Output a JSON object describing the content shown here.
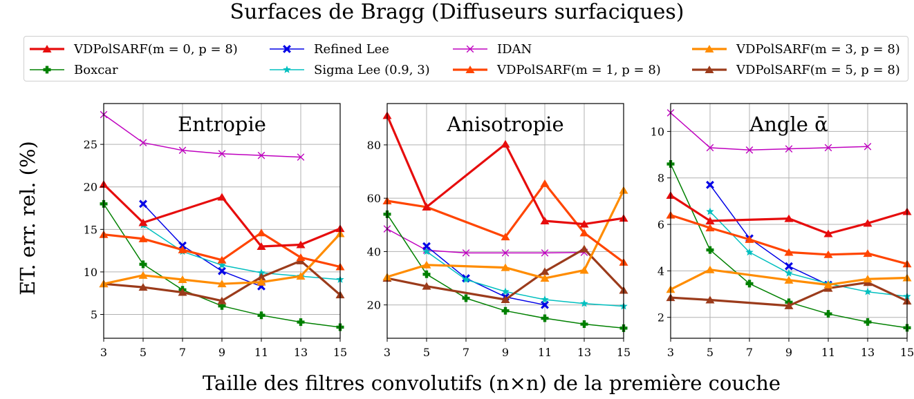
{
  "figure": {
    "title": "Surfaces de Bragg (Diffuseurs surfaciques)",
    "xlabel": "Taille des filtres convolutifs (n×n) de la première couche",
    "ylabel": "ET. err. rel. (%)"
  },
  "legend": [
    {
      "label": "VDPolSARF(m = 0, p = 8)",
      "color": "#e60d0d",
      "marker": "triangle"
    },
    {
      "label": "Boxcar",
      "color": "#008000",
      "marker": "plus"
    },
    {
      "label": "Refined Lee",
      "color": "#0000e6",
      "marker": "x-filled"
    },
    {
      "label": "Sigma Lee (0.9, 3)",
      "color": "#00bfbf",
      "marker": "star"
    },
    {
      "label": "IDAN",
      "color": "#bf00bf",
      "marker": "x"
    },
    {
      "label": "VDPolSARF(m = 1, p = 8)",
      "color": "#ff4500",
      "marker": "triangle"
    },
    {
      "label": "VDPolSARF(m = 3, p = 8)",
      "color": "#ff8c00",
      "marker": "triangle"
    },
    {
      "label": "VDPolSARF(m = 5, p = 8)",
      "color": "#9b3b1b",
      "marker": "triangle"
    }
  ],
  "chart_data": [
    {
      "type": "line",
      "title": "Entropie",
      "x": [
        3,
        5,
        7,
        9,
        11,
        13,
        15
      ],
      "xticks": [
        3,
        5,
        7,
        9,
        11,
        13,
        15
      ],
      "xlim": [
        3,
        15
      ],
      "ylim": [
        2.2,
        29.8
      ],
      "yticks": [
        5,
        10,
        15,
        20,
        25
      ],
      "grid": true,
      "series": [
        {
          "name": "IDAN",
          "values": [
            28.5,
            25.2,
            24.3,
            23.9,
            23.7,
            23.5,
            null
          ]
        },
        {
          "name": "Boxcar",
          "values": [
            18.0,
            10.9,
            7.9,
            6.0,
            4.9,
            4.1,
            3.5
          ]
        },
        {
          "name": "Refined Lee",
          "values": [
            null,
            18.0,
            13.1,
            10.1,
            8.3,
            null,
            null
          ]
        },
        {
          "name": "Sigma Lee (0.9, 3)",
          "values": [
            null,
            15.5,
            12.4,
            10.8,
            9.9,
            9.5,
            9.1
          ]
        },
        {
          "name": "VDPolSARF(m = 5, p = 8)",
          "values": [
            8.6,
            8.2,
            7.6,
            6.6,
            9.4,
            11.3,
            7.3
          ]
        },
        {
          "name": "VDPolSARF(m = 3, p = 8)",
          "values": [
            8.6,
            9.6,
            9.1,
            8.6,
            8.8,
            9.5,
            14.5
          ]
        },
        {
          "name": "VDPolSARF(m = 1, p = 8)",
          "values": [
            14.4,
            13.9,
            12.6,
            11.4,
            14.6,
            11.7,
            10.6
          ]
        },
        {
          "name": "VDPolSARF(m = 0, p = 8)",
          "values": [
            20.3,
            15.8,
            null,
            18.8,
            13.0,
            13.2,
            15.1
          ]
        }
      ]
    },
    {
      "type": "line",
      "title": "Anisotropie",
      "x": [
        3,
        5,
        7,
        9,
        11,
        13,
        15
      ],
      "xticks": [
        3,
        5,
        7,
        9,
        11,
        13,
        15
      ],
      "xlim": [
        3,
        15
      ],
      "ylim": [
        7.5,
        95.5
      ],
      "yticks": [
        20,
        40,
        60,
        80
      ],
      "grid": true,
      "series": [
        {
          "name": "IDAN",
          "values": [
            48.5,
            40.5,
            39.5,
            39.5,
            39.5,
            39.7,
            null
          ]
        },
        {
          "name": "Boxcar",
          "values": [
            54.0,
            31.5,
            22.5,
            17.8,
            15.0,
            12.8,
            11.3
          ]
        },
        {
          "name": "Refined Lee",
          "values": [
            null,
            42.0,
            30.0,
            23.0,
            20.0,
            null,
            null
          ]
        },
        {
          "name": "Sigma Lee (0.9, 3)",
          "values": [
            null,
            40.0,
            29.5,
            25.0,
            22.0,
            20.5,
            19.5
          ]
        },
        {
          "name": "VDPolSARF(m = 5, p = 8)",
          "values": [
            30.0,
            27.0,
            null,
            22.0,
            32.5,
            41.0,
            25.5
          ]
        },
        {
          "name": "VDPolSARF(m = 3, p = 8)",
          "values": [
            30.5,
            35.0,
            null,
            34.0,
            30.0,
            33.0,
            63.0
          ]
        },
        {
          "name": "VDPolSARF(m = 1, p = 8)",
          "values": [
            59.0,
            56.7,
            null,
            45.5,
            65.5,
            47.0,
            36.0
          ]
        },
        {
          "name": "VDPolSARF(m = 0, p = 8)",
          "values": [
            91.0,
            56.7,
            null,
            80.3,
            51.5,
            50.3,
            52.5
          ]
        }
      ]
    },
    {
      "type": "line",
      "title": "Angle ᾱ",
      "x": [
        3,
        5,
        7,
        9,
        11,
        13,
        15
      ],
      "xticks": [
        3,
        5,
        7,
        9,
        11,
        13,
        15
      ],
      "xlim": [
        3,
        15
      ],
      "ylim": [
        1.1,
        11.2
      ],
      "yticks": [
        2,
        4,
        6,
        8,
        10
      ],
      "grid": true,
      "series": [
        {
          "name": "IDAN",
          "values": [
            10.8,
            9.3,
            9.2,
            9.25,
            9.3,
            9.35,
            null
          ]
        },
        {
          "name": "Boxcar",
          "values": [
            8.6,
            4.9,
            3.45,
            2.65,
            2.15,
            1.8,
            1.55
          ]
        },
        {
          "name": "Refined Lee",
          "values": [
            null,
            7.7,
            5.4,
            4.2,
            3.4,
            null,
            null
          ]
        },
        {
          "name": "Sigma Lee (0.9, 3)",
          "values": [
            null,
            6.55,
            4.8,
            3.9,
            3.45,
            3.1,
            2.9
          ]
        },
        {
          "name": "VDPolSARF(m = 5, p = 8)",
          "values": [
            2.85,
            2.75,
            null,
            2.5,
            3.25,
            3.5,
            2.7
          ]
        },
        {
          "name": "VDPolSARF(m = 3, p = 8)",
          "values": [
            3.2,
            4.05,
            null,
            3.6,
            3.4,
            3.65,
            3.7
          ]
        },
        {
          "name": "VDPolSARF(m = 1, p = 8)",
          "values": [
            6.4,
            5.85,
            5.35,
            4.8,
            4.7,
            4.75,
            4.3
          ]
        },
        {
          "name": "VDPolSARF(m = 0, p = 8)",
          "values": [
            7.25,
            6.15,
            null,
            6.25,
            5.6,
            6.05,
            6.55
          ]
        }
      ]
    }
  ]
}
